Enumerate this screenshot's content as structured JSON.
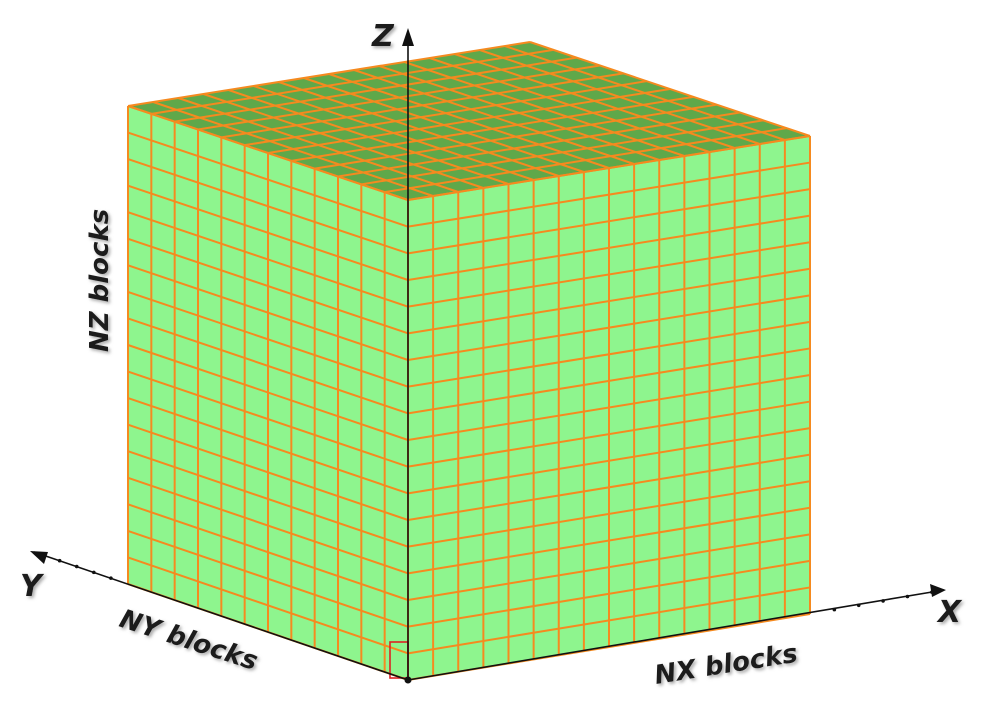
{
  "labels": {
    "z_axis": "Z",
    "y_axis": "Y",
    "x_axis": "X",
    "nz_blocks": "NZ blocks",
    "ny_blocks": "NY blocks",
    "nx_blocks": "NX blocks"
  },
  "grid": {
    "nx": 16,
    "ny": 12,
    "nz": 18
  },
  "colors": {
    "side_faces": "#8ef58e",
    "top_face": "#5fa84a",
    "grid_lines": "#f58a1f",
    "axes": "#111111"
  }
}
